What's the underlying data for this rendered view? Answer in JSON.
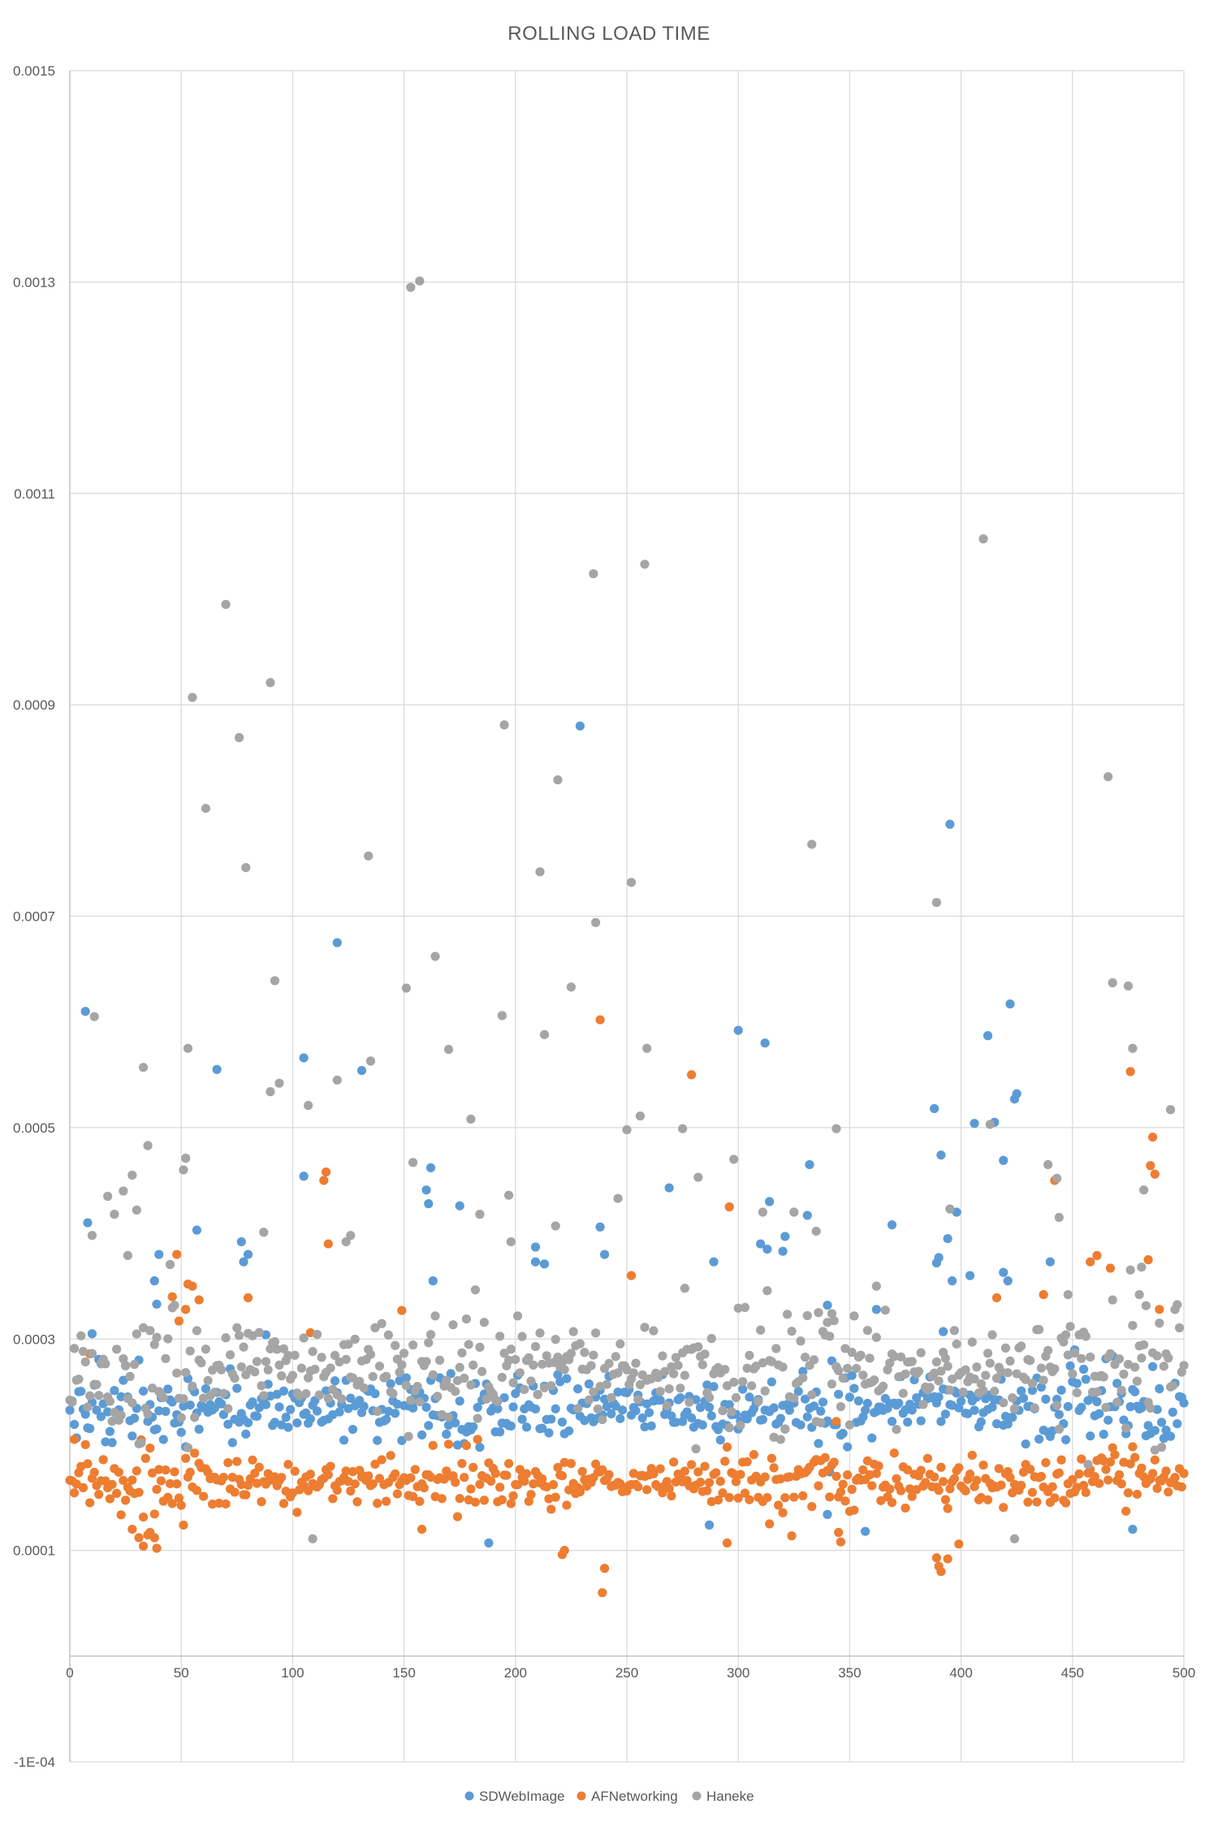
{
  "chart_data": {
    "type": "scatter",
    "title": "ROLLING LOAD TIME",
    "xlabel": "",
    "ylabel": "",
    "xlim": [
      0,
      500
    ],
    "ylim": [
      -0.0001,
      0.0015
    ],
    "x_ticks": [
      0,
      50,
      100,
      150,
      200,
      250,
      300,
      350,
      400,
      450,
      500
    ],
    "x_tick_labels": [
      "0",
      "50",
      "100",
      "150",
      "200",
      "250",
      "300",
      "350",
      "400",
      "450",
      "500"
    ],
    "y_ticks": [
      -0.0001,
      0.0001,
      0.0003,
      0.0005,
      0.0007,
      0.0009,
      0.0011,
      0.0013,
      0.0015
    ],
    "y_tick_labels": [
      "-1E-04",
      "0.0001",
      "0.0003",
      "0.0005",
      "0.0007",
      "0.0009",
      "0.0011",
      "0.0013",
      "0.0015"
    ],
    "grid": true,
    "legend_position": "bottom",
    "series": [
      {
        "name": "SDWebImage",
        "color": "#5b9bd5",
        "baseline": 0.000235,
        "spread": 1.8e-05,
        "count": 501,
        "outliers": [
          [
            7,
            0.00061
          ],
          [
            8,
            0.00041
          ],
          [
            10,
            0.000305
          ],
          [
            40,
            0.00038
          ],
          [
            38,
            0.000355
          ],
          [
            39,
            0.000333
          ],
          [
            57,
            0.000403
          ],
          [
            66,
            0.000555
          ],
          [
            77,
            0.000392
          ],
          [
            78,
            0.000373
          ],
          [
            80,
            0.00038
          ],
          [
            88,
            0.000304
          ],
          [
            105,
            0.000566
          ],
          [
            105,
            0.000454
          ],
          [
            120,
            0.000675
          ],
          [
            131,
            0.000554
          ],
          [
            160,
            0.000441
          ],
          [
            161,
            0.000428
          ],
          [
            162,
            0.000462
          ],
          [
            163,
            0.000355
          ],
          [
            175,
            0.000426
          ],
          [
            188,
            0.000107
          ],
          [
            209,
            0.000387
          ],
          [
            209,
            0.000373
          ],
          [
            213,
            0.000371
          ],
          [
            229,
            0.00088
          ],
          [
            238,
            0.000406
          ],
          [
            240,
            0.00038
          ],
          [
            269,
            0.000443
          ],
          [
            289,
            0.000373
          ],
          [
            287,
            0.000124
          ],
          [
            300,
            0.000592
          ],
          [
            310,
            0.00039
          ],
          [
            312,
            0.00058
          ],
          [
            313,
            0.000385
          ],
          [
            314,
            0.00043
          ],
          [
            320,
            0.000383
          ],
          [
            321,
            0.000397
          ],
          [
            331,
            0.000417
          ],
          [
            332,
            0.000465
          ],
          [
            340,
            0.000332
          ],
          [
            340,
            0.000134
          ],
          [
            357,
            0.000118
          ],
          [
            362,
            0.000328
          ],
          [
            369,
            0.000408
          ],
          [
            388,
            0.000518
          ],
          [
            389,
            0.000372
          ],
          [
            390,
            0.000377
          ],
          [
            391,
            0.000474
          ],
          [
            392,
            0.000307
          ],
          [
            394,
            0.000395
          ],
          [
            395,
            0.000787
          ],
          [
            396,
            0.000355
          ],
          [
            398,
            0.00042
          ],
          [
            404,
            0.00036
          ],
          [
            406,
            0.000504
          ],
          [
            412,
            0.000587
          ],
          [
            415,
            0.000505
          ],
          [
            419,
            0.000363
          ],
          [
            419,
            0.000469
          ],
          [
            421,
            0.000355
          ],
          [
            422,
            0.000617
          ],
          [
            424,
            0.000527
          ],
          [
            425,
            0.000532
          ],
          [
            440,
            0.000373
          ],
          [
            477,
            0.00012
          ]
        ]
      },
      {
        "name": "AFNetworking",
        "color": "#ed7d31",
        "baseline": 0.000165,
        "spread": 1.4e-05,
        "count": 501,
        "outliers": [
          [
            2,
            0.000205
          ],
          [
            9,
            0.000286
          ],
          [
            28,
            0.00012
          ],
          [
            31,
            0.000112
          ],
          [
            33,
            0.000104
          ],
          [
            36,
            0.000117
          ],
          [
            38,
            0.000112
          ],
          [
            39,
            0.000102
          ],
          [
            46,
            0.00034
          ],
          [
            48,
            0.00038
          ],
          [
            49,
            0.000317
          ],
          [
            52,
            0.000328
          ],
          [
            53,
            0.000352
          ],
          [
            55,
            0.00035
          ],
          [
            58,
            0.000337
          ],
          [
            80,
            0.000339
          ],
          [
            114,
            0.00045
          ],
          [
            115,
            0.000458
          ],
          [
            116,
            0.00039
          ],
          [
            108,
            0.000306
          ],
          [
            149,
            0.000327
          ],
          [
            158,
            0.00012
          ],
          [
            221,
            9.6e-05
          ],
          [
            222,
            0.0001
          ],
          [
            239,
            6e-05
          ],
          [
            240,
            8.3e-05
          ],
          [
            238,
            0.000602
          ],
          [
            252,
            0.00036
          ],
          [
            279,
            0.00055
          ],
          [
            296,
            0.000425
          ],
          [
            295,
            0.000107
          ],
          [
            344,
            0.000222
          ],
          [
            345,
            0.000117
          ],
          [
            346,
            0.000108
          ],
          [
            389,
            9.3e-05
          ],
          [
            390,
            8.5e-05
          ],
          [
            391,
            8e-05
          ],
          [
            394,
            9.2e-05
          ],
          [
            399,
            0.000106
          ],
          [
            416,
            0.000339
          ],
          [
            437,
            0.000342
          ],
          [
            442,
            0.00045
          ],
          [
            458,
            0.000373
          ],
          [
            461,
            0.000379
          ],
          [
            467,
            0.000367
          ],
          [
            476,
            0.000553
          ],
          [
            484,
            0.000375
          ],
          [
            485,
            0.000464
          ],
          [
            486,
            0.000491
          ],
          [
            487,
            0.000456
          ],
          [
            489,
            0.000328
          ]
        ]
      },
      {
        "name": "Haneke",
        "color": "#a5a5a5",
        "baseline": 0.00027,
        "spread": 3e-05,
        "count": 501,
        "outliers": [
          [
            10,
            0.000398
          ],
          [
            11,
            0.000605
          ],
          [
            17,
            0.000435
          ],
          [
            20,
            0.000418
          ],
          [
            24,
            0.00044
          ],
          [
            26,
            0.000379
          ],
          [
            28,
            0.000455
          ],
          [
            30,
            0.000422
          ],
          [
            33,
            0.000557
          ],
          [
            35,
            0.000483
          ],
          [
            51,
            0.00046
          ],
          [
            52,
            0.000471
          ],
          [
            53,
            0.000575
          ],
          [
            55,
            0.000907
          ],
          [
            61,
            0.000802
          ],
          [
            70,
            0.000995
          ],
          [
            76,
            0.000869
          ],
          [
            79,
            0.000746
          ],
          [
            87,
            0.000401
          ],
          [
            90,
            0.000921
          ],
          [
            92,
            0.000639
          ],
          [
            94,
            0.000542
          ],
          [
            90,
            0.000534
          ],
          [
            107,
            0.000521
          ],
          [
            109,
            0.000111
          ],
          [
            124,
            0.000392
          ],
          [
            126,
            0.000398
          ],
          [
            134,
            0.000757
          ],
          [
            135,
            0.000563
          ],
          [
            120,
            0.000545
          ],
          [
            153,
            0.001295
          ],
          [
            157,
            0.001301
          ],
          [
            151,
            0.000632
          ],
          [
            154,
            0.000467
          ],
          [
            164,
            0.000662
          ],
          [
            170,
            0.000574
          ],
          [
            180,
            0.000508
          ],
          [
            184,
            0.000418
          ],
          [
            195,
            0.000881
          ],
          [
            194,
            0.000606
          ],
          [
            197,
            0.000436
          ],
          [
            198,
            0.000392
          ],
          [
            211,
            0.000742
          ],
          [
            213,
            0.000588
          ],
          [
            219,
            0.000829
          ],
          [
            218,
            0.000407
          ],
          [
            225,
            0.000633
          ],
          [
            235,
            0.001024
          ],
          [
            236,
            0.000694
          ],
          [
            235,
            0.00025
          ],
          [
            246,
            0.000433
          ],
          [
            250,
            0.000498
          ],
          [
            252,
            0.000732
          ],
          [
            256,
            0.000511
          ],
          [
            258,
            0.001033
          ],
          [
            259,
            0.000575
          ],
          [
            275,
            0.000499
          ],
          [
            276,
            0.000348
          ],
          [
            282,
            0.000453
          ],
          [
            298,
            0.00047
          ],
          [
            311,
            0.00042
          ],
          [
            325,
            0.00042
          ],
          [
            333,
            0.000768
          ],
          [
            335,
            0.000402
          ],
          [
            342,
            0.000324
          ],
          [
            344,
            0.000499
          ],
          [
            362,
            0.00035
          ],
          [
            389,
            0.000713
          ],
          [
            395,
            0.000423
          ],
          [
            410,
            0.001057
          ],
          [
            413,
            0.000503
          ],
          [
            424,
            0.000111
          ],
          [
            443,
            0.000452
          ],
          [
            444,
            0.000415
          ],
          [
            439,
            0.000465
          ],
          [
            448,
            0.000342
          ],
          [
            466,
            0.000832
          ],
          [
            468,
            0.000637
          ],
          [
            475,
            0.000634
          ],
          [
            477,
            0.000575
          ],
          [
            480,
            0.000342
          ],
          [
            481,
            0.000368
          ],
          [
            482,
            0.000441
          ],
          [
            494,
            0.000517
          ]
        ]
      }
    ]
  }
}
